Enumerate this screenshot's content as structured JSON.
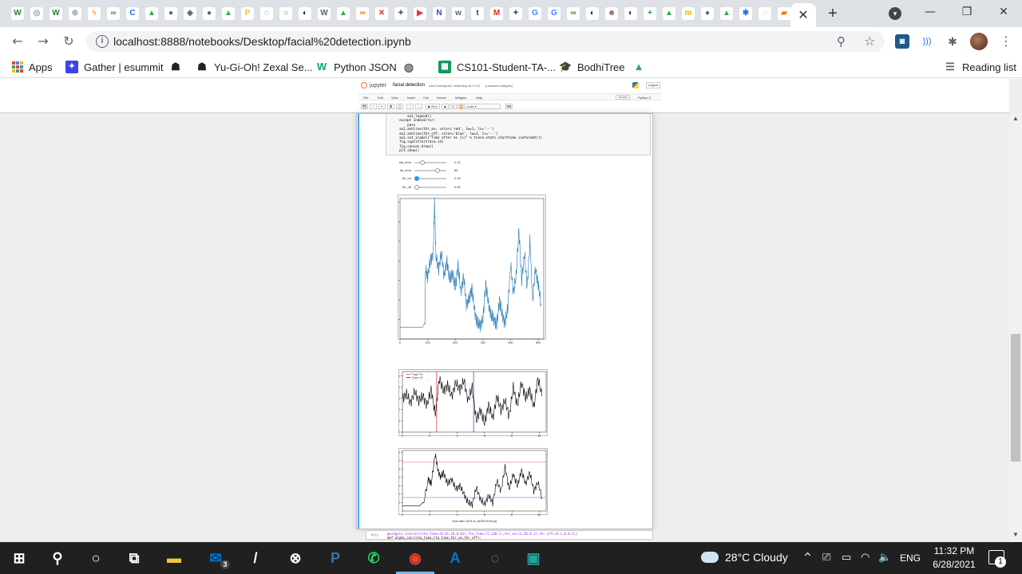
{
  "browser": {
    "active_tab_close": "✕",
    "new_tab": "+",
    "url": "localhost:8888/notebooks/Desktop/facial%20detection.ipynb",
    "tab_favicons": [
      {
        "name": "wiki-w-icon",
        "glyph": "W",
        "color": "#2e7d32"
      },
      {
        "name": "seal-icon",
        "glyph": "◎",
        "color": "#90a4ae"
      },
      {
        "name": "wiki-w-icon",
        "glyph": "W",
        "color": "#2e7d32"
      },
      {
        "name": "compass-icon",
        "glyph": "⊕",
        "color": "#9e9e9e"
      },
      {
        "name": "bolt-icon",
        "glyph": "ϟ",
        "color": "#f9a825"
      },
      {
        "name": "link-icon",
        "glyph": "∞",
        "color": "#388e3c"
      },
      {
        "name": "c-icon",
        "glyph": "C",
        "color": "#1a73e8"
      },
      {
        "name": "drive-icon",
        "glyph": "▲",
        "color": "#34a853"
      },
      {
        "name": "globe-icon",
        "glyph": "●",
        "color": "#5f6368"
      },
      {
        "name": "diamond-icon",
        "glyph": "◈",
        "color": "#5f6368"
      },
      {
        "name": "globe-icon",
        "glyph": "●",
        "color": "#5f6368"
      },
      {
        "name": "drive-icon",
        "glyph": "▲",
        "color": "#34a853"
      },
      {
        "name": "p-icon",
        "glyph": "P",
        "color": "#fbc02d"
      },
      {
        "name": "face-icon",
        "glyph": "☺",
        "color": "#bdbdbd"
      },
      {
        "name": "ring-icon",
        "glyph": "○",
        "color": "#43a047"
      },
      {
        "name": "github-icon",
        "glyph": "◐",
        "color": "#212121"
      },
      {
        "name": "wiki-icon",
        "glyph": "W",
        "color": "#616161"
      },
      {
        "name": "drive-icon",
        "glyph": "▲",
        "color": "#34a853"
      },
      {
        "name": "co-icon",
        "glyph": "∞",
        "color": "#f57c00"
      },
      {
        "name": "close-circle-icon",
        "glyph": "✕",
        "color": "#e53935"
      },
      {
        "name": "spark-icon",
        "glyph": "✦",
        "color": "#616161"
      },
      {
        "name": "youtube-icon",
        "glyph": "▶",
        "color": "#e53935"
      },
      {
        "name": "n-icon",
        "glyph": "N",
        "color": "#3949ab"
      },
      {
        "name": "w-icon",
        "glyph": "w",
        "color": "#616161"
      },
      {
        "name": "tds-icon",
        "glyph": "t",
        "color": "#37474f"
      },
      {
        "name": "gmail-icon",
        "glyph": "M",
        "color": "#d93025"
      },
      {
        "name": "spark-icon",
        "glyph": "✦",
        "color": "#616161"
      },
      {
        "name": "google-icon",
        "glyph": "G",
        "color": "#4285f4"
      },
      {
        "name": "google-icon",
        "glyph": "G",
        "color": "#4285f4"
      },
      {
        "name": "link-icon",
        "glyph": "∞",
        "color": "#388e3c"
      },
      {
        "name": "github-icon",
        "glyph": "◐",
        "color": "#212121"
      },
      {
        "name": "monkey-icon",
        "glyph": "☻",
        "color": "#8d6e63"
      },
      {
        "name": "github-icon",
        "glyph": "◐",
        "color": "#212121"
      },
      {
        "name": "plus-icon",
        "glyph": "+",
        "color": "#0f9d58"
      },
      {
        "name": "drive-icon",
        "glyph": "▲",
        "color": "#34a853"
      },
      {
        "name": "m-icon",
        "glyph": "m",
        "color": "#f4b400"
      },
      {
        "name": "globe-icon",
        "glyph": "●",
        "color": "#5f6368"
      },
      {
        "name": "drive-icon",
        "glyph": "▲",
        "color": "#34a853"
      },
      {
        "name": "gear-icon",
        "glyph": "✱",
        "color": "#1a73e8"
      },
      {
        "name": "jupyter-icon",
        "glyph": "◌",
        "color": "#f37726"
      },
      {
        "name": "book-icon",
        "glyph": "▰",
        "color": "#f57c00"
      }
    ],
    "bookmarks": [
      {
        "label": "Apps",
        "icon": "apps-icon"
      },
      {
        "label": "Gather | esummit",
        "icon": "gather-icon"
      },
      {
        "label": "",
        "icon": "ninja-icon"
      },
      {
        "label": "Yu-Gi-Oh! Zexal Se...",
        "icon": "ninja-icon"
      },
      {
        "label": "Python JSON",
        "icon": "w3schools-icon"
      },
      {
        "label": "",
        "icon": "globe-icon"
      },
      {
        "label": "CS101-Student-TA-...",
        "icon": "sheets-icon"
      },
      {
        "label": "BodhiTree",
        "icon": "graduation-cap-icon"
      },
      {
        "label": "",
        "icon": "drive-icon"
      }
    ],
    "reading_list": "Reading list"
  },
  "jupyter": {
    "logo_text": "jupyter",
    "notebook_name": "facial detection",
    "checkpoint": "Last Checkpoint: Yesterday at 17:01",
    "unsaved": "(unsaved changes)",
    "logout": "Logout",
    "trusted": "Trusted",
    "kernel": "Python 3",
    "menu": [
      "File",
      "Edit",
      "View",
      "Insert",
      "Cell",
      "Kernel",
      "Widgets",
      "Help"
    ],
    "toolbar_buttons": [
      "💾",
      "+",
      "✂",
      "⧉",
      "📋",
      "↑",
      "↓"
    ],
    "run_label": "▶ Run",
    "cell_type": "Code",
    "code_lines": [
      "        ax1.legend()",
      "    except IndexError:",
      "        pass",
      "    ax2.axhline(thr_on, color='red', lw=1, ls='--')",
      "    ax2.axhline(thr_off, color='blue', lw=1, ls='--')",
      "    ax2.set_xlabel(\"Time after %s [s]\" % trace.stats.starttime.isoformat())",
      "    fig.suptitle(trace.id)",
      "    fig.canvas.draw()",
      "    plt.show()"
    ],
    "sliders": [
      {
        "label": "sta_time",
        "value": "2.22",
        "fraction": 0.2
      },
      {
        "label": "lta_time",
        "value": "85",
        "fraction": 0.75
      },
      {
        "label": "thr_on",
        "value": "2.90",
        "fraction": 0.0
      },
      {
        "label": "thr_off",
        "value": "0.80",
        "fraction": 0.0
      }
    ],
    "next_cell_prompt": "In [ ]:",
    "next_cell_code": [
      "@widgets.interact(sta_time=(0.01,10,0.01),lta_time=(5,120,1),thr_on=(1,20,0.1),thr_off=(0.1,8,0.1))",
      "def alpha_calc(sta_time,lta_time,thr_on,thr_off):"
    ]
  },
  "chart_data": [
    {
      "type": "line",
      "title": "",
      "xlabel": "",
      "ylabel": "",
      "xlim": [
        0,
        520
      ],
      "ylim": [
        0,
        3.6
      ],
      "xticks": [
        "0",
        "100",
        "200",
        "300",
        "400",
        "500"
      ],
      "yticks": [
        "0.5",
        "1.0",
        "1.5",
        "2.0",
        "2.5",
        "3.0",
        "3.5"
      ],
      "color": "#1f77b4",
      "x": [
        0,
        40,
        90,
        92,
        100,
        110,
        120,
        125,
        130,
        140,
        150,
        160,
        170,
        180,
        190,
        200,
        210,
        220,
        230,
        240,
        250,
        260,
        270,
        280,
        290,
        300,
        310,
        320,
        330,
        340,
        350,
        360,
        370,
        380,
        390,
        400,
        410,
        420,
        430,
        440,
        450,
        460,
        470,
        480,
        490,
        500,
        510
      ],
      "y": [
        0.3,
        0.3,
        0.3,
        1.8,
        1.6,
        2.0,
        2.2,
        3.5,
        2.1,
        1.8,
        2.2,
        1.6,
        2.0,
        1.5,
        1.7,
        1.3,
        1.9,
        1.2,
        1.6,
        0.9,
        1.0,
        1.3,
        0.7,
        0.4,
        0.35,
        0.5,
        1.4,
        0.9,
        0.6,
        0.5,
        0.35,
        1.0,
        0.6,
        0.4,
        0.8,
        1.9,
        1.2,
        1.6,
        2.8,
        1.5,
        2.2,
        1.3,
        2.5,
        1.0,
        1.8,
        1.4,
        0.9
      ]
    },
    {
      "type": "line",
      "title": "",
      "legend": [
        "Trigger On",
        "Trigger Off"
      ],
      "xlim": [
        0,
        10.5
      ],
      "ylim": [
        0.0,
        0.27
      ],
      "xticks": [
        "0",
        "2",
        "4",
        "6",
        "8",
        "10"
      ],
      "yticks": [
        "0.00",
        "0.05",
        "0.10",
        "0.15",
        "0.20",
        "0.25"
      ],
      "trigger_on": 2.5,
      "trigger_off": 5.2,
      "x": [
        0,
        0.3,
        0.6,
        0.9,
        1.2,
        1.5,
        1.8,
        2.1,
        2.4,
        2.7,
        3.0,
        3.3,
        3.6,
        3.9,
        4.2,
        4.5,
        4.8,
        5.1,
        5.4,
        5.7,
        6.0,
        6.3,
        6.6,
        6.9,
        7.2,
        7.5,
        7.8,
        8.1,
        8.4,
        8.7,
        9.0,
        9.3,
        9.6,
        9.9,
        10.2
      ],
      "y": [
        0.15,
        0.17,
        0.13,
        0.18,
        0.14,
        0.16,
        0.12,
        0.19,
        0.08,
        0.24,
        0.18,
        0.21,
        0.16,
        0.22,
        0.19,
        0.23,
        0.14,
        0.2,
        0.05,
        0.1,
        0.04,
        0.12,
        0.06,
        0.16,
        0.1,
        0.14,
        0.07,
        0.2,
        0.12,
        0.22,
        0.15,
        0.19,
        0.11,
        0.24,
        0.16
      ]
    },
    {
      "type": "line",
      "title": "",
      "xlabel": "Time after 1975-11-18T00:00:00 [s]",
      "xlim": [
        0,
        10.5
      ],
      "ylim": [
        0,
        3.6
      ],
      "xticks": [
        "0",
        "2",
        "4",
        "6",
        "8",
        "10"
      ],
      "yticks": [
        "0.5",
        "1.0",
        "1.5",
        "2.0",
        "2.5",
        "3.0",
        "3.5"
      ],
      "thr_on": 2.9,
      "thr_off": 0.8,
      "x": [
        0,
        1.5,
        1.9,
        2.1,
        2.4,
        2.6,
        2.8,
        3.0,
        3.3,
        3.6,
        3.9,
        4.2,
        4.5,
        4.8,
        5.1,
        5.4,
        5.7,
        6.0,
        6.3,
        6.6,
        6.9,
        7.2,
        7.5,
        7.8,
        8.1,
        8.4,
        8.7,
        9.0,
        9.3,
        9.6,
        9.9,
        10.2
      ],
      "y": [
        0.3,
        0.3,
        1.9,
        1.6,
        3.4,
        2.4,
        2.0,
        2.3,
        1.6,
        1.9,
        1.3,
        1.5,
        1.0,
        0.5,
        0.4,
        1.4,
        0.7,
        0.4,
        0.9,
        0.5,
        1.8,
        1.2,
        2.6,
        1.3,
        2.2,
        1.5,
        2.4,
        1.6,
        2.3,
        1.2,
        1.7,
        0.8
      ]
    }
  ],
  "taskbar": {
    "apps": [
      {
        "name": "start-icon",
        "glyph": "⊞",
        "color": "#ffffff"
      },
      {
        "name": "search-icon",
        "glyph": "⚲",
        "color": "#ffffff"
      },
      {
        "name": "cortana-icon",
        "glyph": "○",
        "color": "#ffffff"
      },
      {
        "name": "task-view-icon",
        "glyph": "⧉",
        "color": "#ffffff"
      },
      {
        "name": "file-explorer-icon",
        "glyph": "▬",
        "color": "#f4c542"
      },
      {
        "name": "mail-icon",
        "glyph": "✉",
        "color": "#0078d4"
      },
      {
        "name": "app-icon",
        "glyph": "/",
        "color": "#ffffff"
      },
      {
        "name": "xbox-icon",
        "glyph": "⊗",
        "color": "#ffffff"
      },
      {
        "name": "python-icon",
        "glyph": "P",
        "color": "#3776ab"
      },
      {
        "name": "whatsapp-icon",
        "glyph": "✆",
        "color": "#25d366"
      },
      {
        "name": "chrome-icon",
        "glyph": "◉",
        "color": "#ea4335"
      },
      {
        "name": "arduino-icon",
        "glyph": "A",
        "color": "#0078d4"
      },
      {
        "name": "jupyter-icon",
        "glyph": "◌",
        "color": "#f37726"
      },
      {
        "name": "terminal-icon",
        "glyph": "▣",
        "color": "#26a69a"
      }
    ],
    "mail_badge": "3",
    "weather": "28°C  Cloudy",
    "language": "ENG",
    "time": "11:32 PM",
    "date": "6/28/2021",
    "notifications": "1"
  }
}
